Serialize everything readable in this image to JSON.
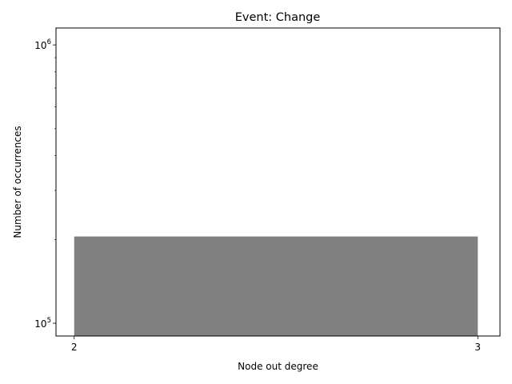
{
  "chart_data": {
    "type": "bar",
    "title": "Event: Change",
    "xlabel": "Node out degree",
    "ylabel": "Number of occurrences",
    "y_scale": "log",
    "ylim": [
      90000,
      1150000
    ],
    "xlim": [
      1.955,
      3.055
    ],
    "bar_color": "#808080",
    "bars": [
      {
        "x_start": 2,
        "x_end": 3,
        "value": 205000
      }
    ],
    "x_ticks": [
      {
        "value": 2,
        "label": "2"
      },
      {
        "value": 3,
        "label": "3"
      }
    ],
    "y_ticks": [
      {
        "value": 100000,
        "base": "10",
        "exponent": "5"
      },
      {
        "value": 1000000,
        "base": "10",
        "exponent": "6"
      }
    ],
    "y_minor_ticks": [
      200000,
      300000,
      400000,
      500000,
      600000,
      700000,
      800000,
      900000
    ],
    "grid": false,
    "legend": "none"
  }
}
